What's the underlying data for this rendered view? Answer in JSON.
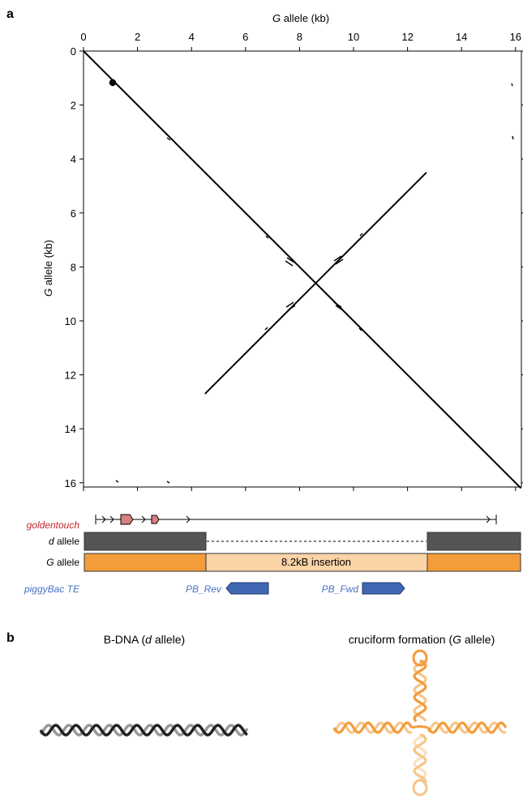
{
  "panel_a": {
    "label": "a",
    "x_axis_title_italic": "G",
    "x_axis_title_rest": " allele (kb)",
    "y_axis_title_italic": "G",
    "y_axis_title_rest": " allele (kb)",
    "x_ticks": [
      "0",
      "2",
      "4",
      "6",
      "8",
      "10",
      "12",
      "14",
      "16"
    ],
    "y_ticks": [
      "0",
      "2",
      "4",
      "6",
      "8",
      "10",
      "12",
      "14",
      "16"
    ]
  },
  "chart_data": {
    "type": "scatter",
    "title": "",
    "xlabel": "G allele (kb)",
    "ylabel": "G allele (kb)",
    "xlim": [
      0,
      16.2
    ],
    "ylim": [
      16.2,
      0
    ],
    "series": [
      {
        "x": [
          0,
          16.2
        ],
        "y": [
          0,
          16.2
        ]
      },
      {
        "x": [
          4.5,
          12.7
        ],
        "y": [
          12.7,
          4.5
        ]
      }
    ]
  },
  "tracks": {
    "gene_label": "goldentouch",
    "d_label_italic": "d",
    "d_label_rest": " allele",
    "g_label_italic": "G",
    "g_label_rest": " allele",
    "insertion_label": "8.2kB insertion",
    "te_label": "piggyBac TE",
    "pb_rev_label": "PB_Rev",
    "pb_fwd_label": "PB_Fwd"
  },
  "panel_b": {
    "label": "b",
    "left_title_prefix": "B-DNA (",
    "left_title_italic": "d",
    "left_title_suffix": " allele)",
    "right_title_prefix": "cruciform formation (",
    "right_title_italic": "G",
    "right_title_suffix": " allele)"
  },
  "colors": {
    "gray_bar": "#555555",
    "orange": "#F39C3A",
    "light_orange": "#FAD3A7",
    "pb_blue": "#3F67B1",
    "label_blue": "#4A72C2",
    "gene_red": "#C0272D",
    "exon_pink": "#D98080"
  }
}
